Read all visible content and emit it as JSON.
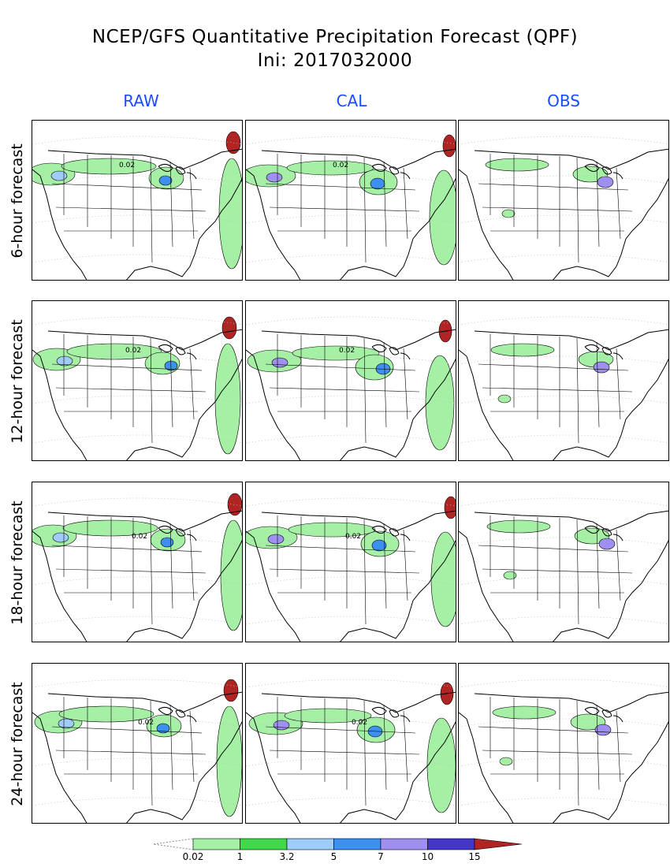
{
  "title": {
    "line1": "NCEP/GFS Quantitative Precipitation Forecast (QPF)",
    "line2": "Ini: 2017032000"
  },
  "columns": [
    "RAW",
    "CAL",
    "OBS"
  ],
  "rows": [
    "6-hour forecast",
    "12-hour forecast",
    "18-hour forecast",
    "24-hour forecast"
  ],
  "panel_contour_label": "0.02",
  "legend": {
    "ticks": [
      "0.02",
      "1",
      "3.2",
      "5",
      "7",
      "10",
      "15"
    ],
    "colors": [
      "#a6f0a6",
      "#3fd94a",
      "#9fcdfa",
      "#3d8ff0",
      "#9f8ff0",
      "#4436c8",
      "#b02424"
    ]
  }
}
